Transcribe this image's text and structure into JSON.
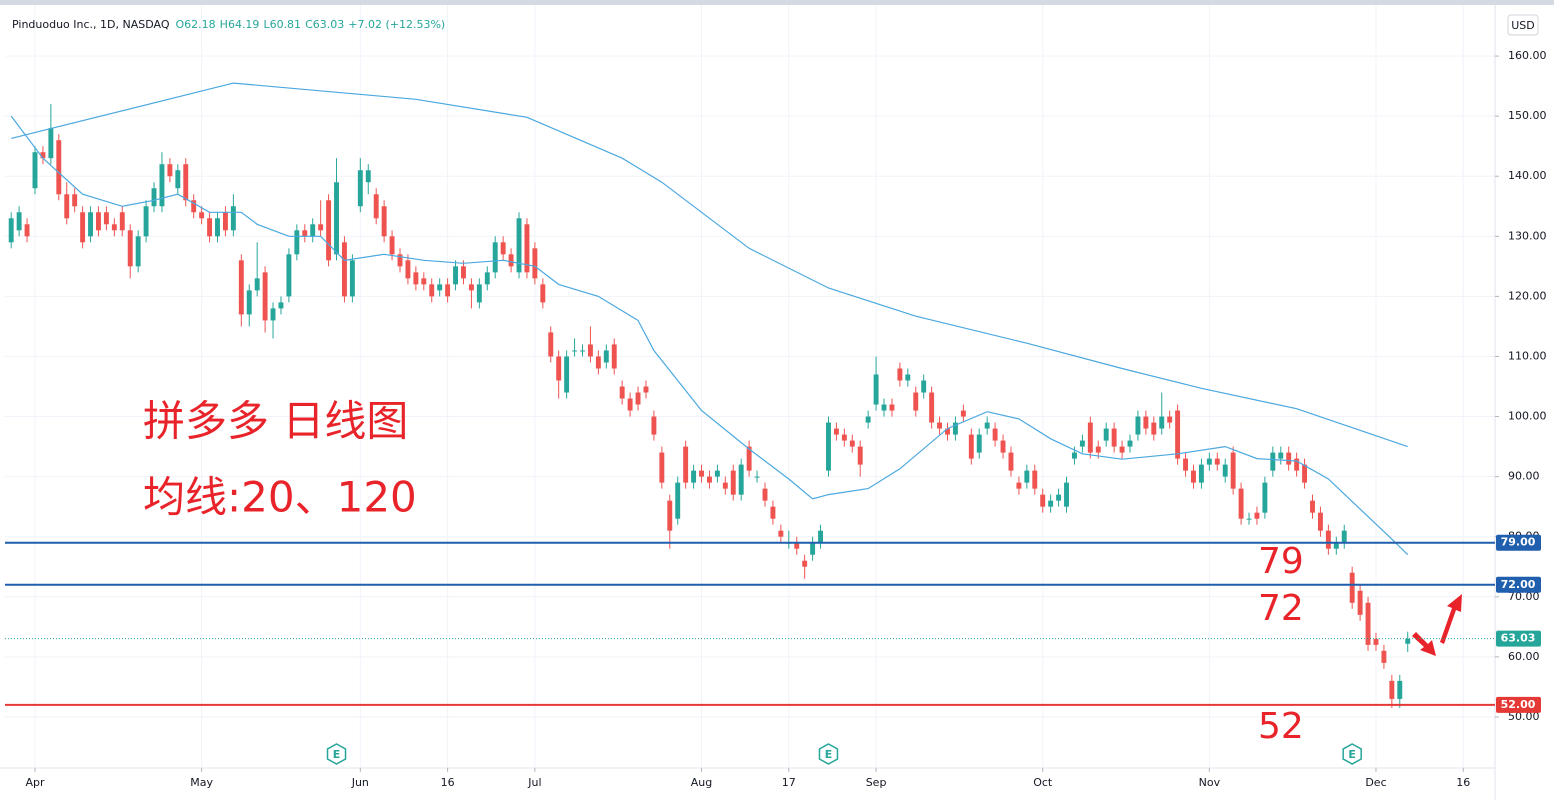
{
  "chart_data": {
    "type": "candlestick",
    "title": "Pinduoduo Inc., 1D, NASDAQ",
    "readout": [
      "O62.18",
      "H64.19",
      "L60.81",
      "C63.03",
      "+7.02 (+12.53%)"
    ],
    "currency": "USD",
    "up_color": "#26a69a",
    "down_color": "#ef5350",
    "grid": true,
    "xlim": [
      -3.78,
      184
    ],
    "ylim": [
      41.5,
      168.5
    ],
    "yticks": [
      {
        "value": 50,
        "label": "50.00"
      },
      {
        "value": 60,
        "label": "60.00"
      },
      {
        "value": 70,
        "label": "70.00"
      },
      {
        "value": 80,
        "label": "80.00"
      },
      {
        "value": 90,
        "label": "90.00"
      },
      {
        "value": 100,
        "label": "100.00"
      },
      {
        "value": 110,
        "label": "110.00"
      },
      {
        "value": 120,
        "label": "120.00"
      },
      {
        "value": 130,
        "label": "130.00"
      },
      {
        "value": 140,
        "label": "140.00"
      },
      {
        "value": 150,
        "label": "150.00"
      },
      {
        "value": 160,
        "label": "160.00"
      }
    ],
    "xticks": [
      {
        "value": 0,
        "label": "Apr"
      },
      {
        "value": 21,
        "label": "May"
      },
      {
        "value": 41,
        "label": "Jun"
      },
      {
        "value": 52,
        "label": "16"
      },
      {
        "value": 63,
        "label": "Jul"
      },
      {
        "value": 84,
        "label": "Aug"
      },
      {
        "value": 95,
        "label": "17"
      },
      {
        "value": 106,
        "label": "Sep"
      },
      {
        "value": 127,
        "label": "Oct"
      },
      {
        "value": 148,
        "label": "Nov"
      },
      {
        "value": 169,
        "label": "Dec"
      },
      {
        "value": 180,
        "label": "16"
      }
    ],
    "x": [
      -3,
      -2,
      -1,
      0,
      1,
      2,
      3,
      4,
      5,
      6,
      7,
      8,
      9,
      10,
      11,
      12,
      13,
      14,
      15,
      16,
      17,
      18,
      19,
      20,
      21,
      22,
      23,
      24,
      25,
      26,
      27,
      28,
      29,
      30,
      31,
      32,
      33,
      34,
      35,
      36,
      37,
      38,
      39,
      40,
      41,
      42,
      43,
      44,
      45,
      46,
      47,
      48,
      49,
      50,
      51,
      52,
      53,
      54,
      55,
      56,
      57,
      58,
      59,
      60,
      61,
      62,
      63,
      64,
      65,
      66,
      67,
      68,
      69,
      70,
      71,
      72,
      73,
      74,
      75,
      76,
      77,
      78,
      79,
      80,
      81,
      82,
      83,
      84,
      85,
      86,
      87,
      88,
      89,
      90,
      91,
      92,
      93,
      94,
      95,
      96,
      97,
      98,
      99,
      100,
      101,
      102,
      103,
      104,
      105,
      106,
      107,
      108,
      109,
      110,
      111,
      112,
      113,
      114,
      115,
      116,
      117,
      118,
      119,
      120,
      121,
      122,
      123,
      124,
      125,
      126,
      127,
      128,
      129,
      130,
      131,
      132,
      133,
      134,
      135,
      136,
      137,
      138,
      139,
      140,
      141,
      142,
      143,
      144,
      145,
      146,
      147,
      148,
      149,
      150,
      151,
      152,
      153,
      154,
      155,
      156,
      157,
      158,
      159,
      160,
      161,
      162,
      163,
      164,
      165,
      166,
      167,
      168,
      169,
      170,
      171,
      172,
      173
    ],
    "candles": [
      [
        129,
        134,
        128,
        133
      ],
      [
        131,
        135,
        130,
        134
      ],
      [
        132,
        133,
        129,
        130
      ],
      [
        138,
        145,
        137,
        144
      ],
      [
        144,
        145,
        142,
        143
      ],
      [
        143,
        152,
        142,
        148
      ],
      [
        146,
        147,
        136,
        137
      ],
      [
        137,
        139,
        132,
        133
      ],
      [
        137,
        138,
        134,
        135
      ],
      [
        134,
        135,
        128,
        129
      ],
      [
        130,
        135,
        129,
        134
      ],
      [
        134,
        135,
        130,
        131
      ],
      [
        134,
        135,
        131,
        132
      ],
      [
        132,
        133,
        130,
        131
      ],
      [
        134,
        135,
        130,
        131
      ],
      [
        131,
        132,
        123,
        125
      ],
      [
        125,
        131,
        124,
        130
      ],
      [
        130,
        136,
        129,
        135
      ],
      [
        135,
        139,
        134,
        138
      ],
      [
        135,
        144,
        134,
        142
      ],
      [
        142,
        143,
        139,
        140
      ],
      [
        138,
        142,
        137,
        141
      ],
      [
        142,
        143,
        135,
        136
      ],
      [
        136,
        137,
        133,
        134
      ],
      [
        134,
        135,
        132,
        133
      ],
      [
        133,
        134,
        129,
        130
      ],
      [
        130,
        134,
        129,
        133
      ],
      [
        134,
        135,
        130,
        131
      ],
      [
        131,
        137,
        130,
        135
      ],
      [
        126,
        127,
        115,
        117
      ],
      [
        117,
        122,
        115,
        121
      ],
      [
        121,
        129,
        120,
        123
      ],
      [
        124,
        125,
        114,
        116
      ],
      [
        116,
        119,
        113,
        118
      ],
      [
        118,
        120,
        117,
        119
      ],
      [
        120,
        128,
        119,
        127
      ],
      [
        127,
        132,
        126,
        131
      ],
      [
        131,
        132,
        129,
        130
      ],
      [
        130,
        133,
        129,
        132
      ],
      [
        132,
        136,
        130,
        131
      ],
      [
        136,
        137,
        125,
        126
      ],
      [
        127,
        143,
        126,
        139
      ],
      [
        129,
        130,
        119,
        120
      ],
      [
        120,
        127,
        119,
        126
      ],
      [
        135,
        143,
        134,
        141
      ],
      [
        139,
        142,
        137,
        141
      ],
      [
        137,
        138,
        132,
        133
      ],
      [
        135,
        136,
        129,
        130
      ],
      [
        130,
        131,
        126,
        127
      ],
      [
        127,
        128,
        124,
        125
      ],
      [
        126,
        127,
        122,
        123
      ],
      [
        124,
        125,
        121,
        122
      ],
      [
        123,
        124,
        121,
        122
      ],
      [
        122,
        123,
        119,
        120
      ],
      [
        121,
        123,
        120,
        122
      ],
      [
        122,
        123,
        119,
        120
      ],
      [
        122,
        126,
        121,
        125
      ],
      [
        125,
        126,
        122,
        123
      ],
      [
        122,
        123,
        118,
        121
      ],
      [
        119,
        123,
        118,
        122
      ],
      [
        122,
        125,
        121,
        124
      ],
      [
        124,
        130,
        123,
        129
      ],
      [
        129,
        130,
        126,
        127
      ],
      [
        127,
        128,
        124,
        125
      ],
      [
        124,
        134,
        123,
        133
      ],
      [
        132,
        133,
        123,
        124
      ],
      [
        128,
        129,
        122,
        123
      ],
      [
        122,
        123,
        118,
        119
      ],
      [
        114,
        115,
        109,
        110
      ],
      [
        110,
        111,
        103,
        106
      ],
      [
        104,
        111,
        103,
        110
      ],
      [
        111,
        113,
        110,
        111
      ],
      [
        111,
        112,
        110,
        111
      ],
      [
        112,
        115,
        109,
        110
      ],
      [
        110,
        111,
        107,
        108
      ],
      [
        109,
        112,
        108,
        111
      ],
      [
        112,
        113,
        107,
        108
      ],
      [
        105,
        106,
        102,
        103
      ],
      [
        103,
        104,
        100,
        101
      ],
      [
        104,
        105,
        101,
        102
      ],
      [
        105,
        106,
        103,
        104
      ],
      [
        100,
        101,
        96,
        97
      ],
      [
        94,
        95,
        88,
        89
      ],
      [
        86,
        87,
        78,
        81
      ],
      [
        83,
        90,
        82,
        89
      ],
      [
        95,
        96,
        88,
        89
      ],
      [
        89,
        92,
        88,
        91
      ],
      [
        91,
        92,
        89,
        90
      ],
      [
        90,
        91,
        88,
        89
      ],
      [
        90,
        92,
        89,
        91
      ],
      [
        89,
        90,
        87,
        88
      ],
      [
        91,
        92,
        86,
        87
      ],
      [
        87,
        93,
        86,
        92
      ],
      [
        95,
        96,
        90,
        91
      ],
      [
        90,
        91,
        89,
        90
      ],
      [
        88,
        89,
        85,
        86
      ],
      [
        85,
        86,
        82,
        83
      ],
      [
        81,
        82,
        79,
        80
      ],
      [
        79,
        81,
        78,
        79
      ],
      [
        79,
        80,
        77,
        78
      ],
      [
        76,
        77,
        73,
        75
      ],
      [
        77,
        80,
        76,
        79
      ],
      [
        79,
        82,
        78,
        81
      ],
      [
        91,
        100,
        90,
        99
      ],
      [
        98,
        99,
        96,
        97
      ],
      [
        97,
        98,
        95,
        96
      ],
      [
        96,
        97,
        94,
        95
      ],
      [
        95,
        96,
        90,
        92
      ],
      [
        99,
        101,
        98,
        100
      ],
      [
        102,
        110,
        101,
        107
      ],
      [
        101,
        103,
        100,
        102
      ],
      [
        102,
        103,
        100,
        101
      ],
      [
        108,
        109,
        105,
        106
      ],
      [
        106,
        108,
        105,
        107
      ],
      [
        104,
        105,
        100,
        101
      ],
      [
        104,
        107,
        103,
        106
      ],
      [
        104,
        105,
        98,
        99
      ],
      [
        99,
        100,
        97,
        98
      ],
      [
        98,
        99,
        96,
        97
      ],
      [
        97,
        100,
        96,
        99
      ],
      [
        101,
        102,
        99,
        100
      ],
      [
        97,
        98,
        92,
        93
      ],
      [
        94,
        98,
        93,
        97
      ],
      [
        98,
        100,
        97,
        99
      ],
      [
        98,
        99,
        95,
        96
      ],
      [
        96,
        97,
        93,
        94
      ],
      [
        94,
        95,
        90,
        91
      ],
      [
        89,
        90,
        87,
        88
      ],
      [
        89,
        92,
        88,
        91
      ],
      [
        91,
        92,
        87,
        88
      ],
      [
        87,
        88,
        84,
        85
      ],
      [
        85,
        87,
        84,
        86
      ],
      [
        86,
        88,
        85,
        87
      ],
      [
        85,
        90,
        84,
        89
      ],
      [
        93,
        95,
        92,
        94
      ],
      [
        95,
        97,
        94,
        96
      ],
      [
        99,
        100,
        93,
        94
      ],
      [
        95,
        96,
        93,
        94
      ],
      [
        96,
        99,
        95,
        98
      ],
      [
        98,
        99,
        94,
        95
      ],
      [
        95,
        96,
        93,
        94
      ],
      [
        95,
        97,
        94,
        96
      ],
      [
        97,
        101,
        96,
        100
      ],
      [
        100,
        101,
        97,
        98
      ],
      [
        99,
        100,
        96,
        97
      ],
      [
        98,
        104,
        97,
        100
      ],
      [
        100,
        101,
        98,
        99
      ],
      [
        101,
        102,
        92,
        93
      ],
      [
        93,
        94,
        90,
        91
      ],
      [
        91,
        92,
        88,
        89
      ],
      [
        89,
        93,
        88,
        92
      ],
      [
        92,
        94,
        91,
        93
      ],
      [
        93,
        94,
        91,
        92
      ],
      [
        90,
        93,
        89,
        92
      ],
      [
        94,
        95,
        87,
        88
      ],
      [
        88,
        89,
        82,
        83
      ],
      [
        83,
        84,
        82,
        83
      ],
      [
        84,
        85,
        82,
        83
      ],
      [
        84,
        90,
        83,
        89
      ],
      [
        91,
        95,
        90,
        94
      ],
      [
        93,
        95,
        92,
        94
      ],
      [
        94,
        95,
        91,
        92
      ],
      [
        93,
        94,
        90,
        91
      ],
      [
        92,
        93,
        88,
        89
      ],
      [
        86,
        87,
        83,
        84
      ],
      [
        84,
        85,
        80,
        81
      ],
      [
        81,
        82,
        77,
        78
      ],
      [
        78,
        80,
        77,
        79
      ],
      [
        79,
        82,
        78,
        81
      ],
      [
        74,
        75,
        68,
        69
      ],
      [
        71,
        72,
        66,
        67
      ],
      [
        69,
        70,
        61,
        62
      ],
      [
        63,
        64,
        61,
        62
      ],
      [
        61,
        62,
        58,
        59
      ],
      [
        56,
        57,
        51.5,
        53
      ],
      [
        53,
        57,
        51.5,
        56
      ],
      [
        62.18,
        64.19,
        60.81,
        63.03
      ]
    ],
    "moving_averages": [
      {
        "color": "#4aa8e0",
        "x": [
          -3,
          1,
          6,
          11,
          15,
          18,
          22,
          26,
          28,
          32,
          36,
          39,
          44,
          49,
          54,
          59,
          63,
          66,
          71,
          76,
          78,
          84,
          90,
          95,
          98,
          100,
          105,
          109,
          115,
          120,
          124,
          128,
          132,
          137,
          144,
          150,
          154,
          159,
          163,
          167,
          171,
          173
        ],
        "values": [
          150,
          143,
          137,
          135,
          136,
          137,
          134,
          134,
          132,
          130,
          130,
          126,
          127,
          126,
          125.5,
          126,
          125,
          122,
          120,
          116,
          111,
          101,
          94.6,
          89.6,
          86.3,
          87,
          88,
          91.3,
          98,
          100.8,
          99.6,
          96.3,
          93.8,
          92.9,
          93.8,
          95,
          93,
          92.6,
          89.6,
          84.6,
          79.6,
          77
        ]
      },
      {
        "color": "#4aa8e0",
        "x": [
          -3,
          25,
          48,
          62,
          74,
          79,
          90,
          100,
          111,
          125,
          137,
          147,
          159,
          173
        ],
        "values": [
          146.3,
          155.5,
          152.8,
          149.8,
          143,
          139,
          128,
          121.4,
          116.7,
          112.2,
          108,
          104.7,
          101.3,
          95
        ]
      }
    ],
    "levels": [
      {
        "value": 79,
        "label": "79.00",
        "color": "#1f5fae"
      },
      {
        "value": 72,
        "label": "72.00",
        "color": "#1f5fae"
      },
      {
        "value": 52,
        "label": "52.00",
        "color": "#e53935"
      }
    ],
    "last_price": {
      "value": 63.03,
      "label": "63.03",
      "color": "#26a69a"
    },
    "events": [
      {
        "x": 38,
        "label": "E"
      },
      {
        "x": 100,
        "label": "E"
      },
      {
        "x": 166,
        "label": "E"
      }
    ],
    "annotations": [
      "拼多多 日线图",
      "均线:20、120",
      "79",
      "72",
      "52"
    ]
  }
}
